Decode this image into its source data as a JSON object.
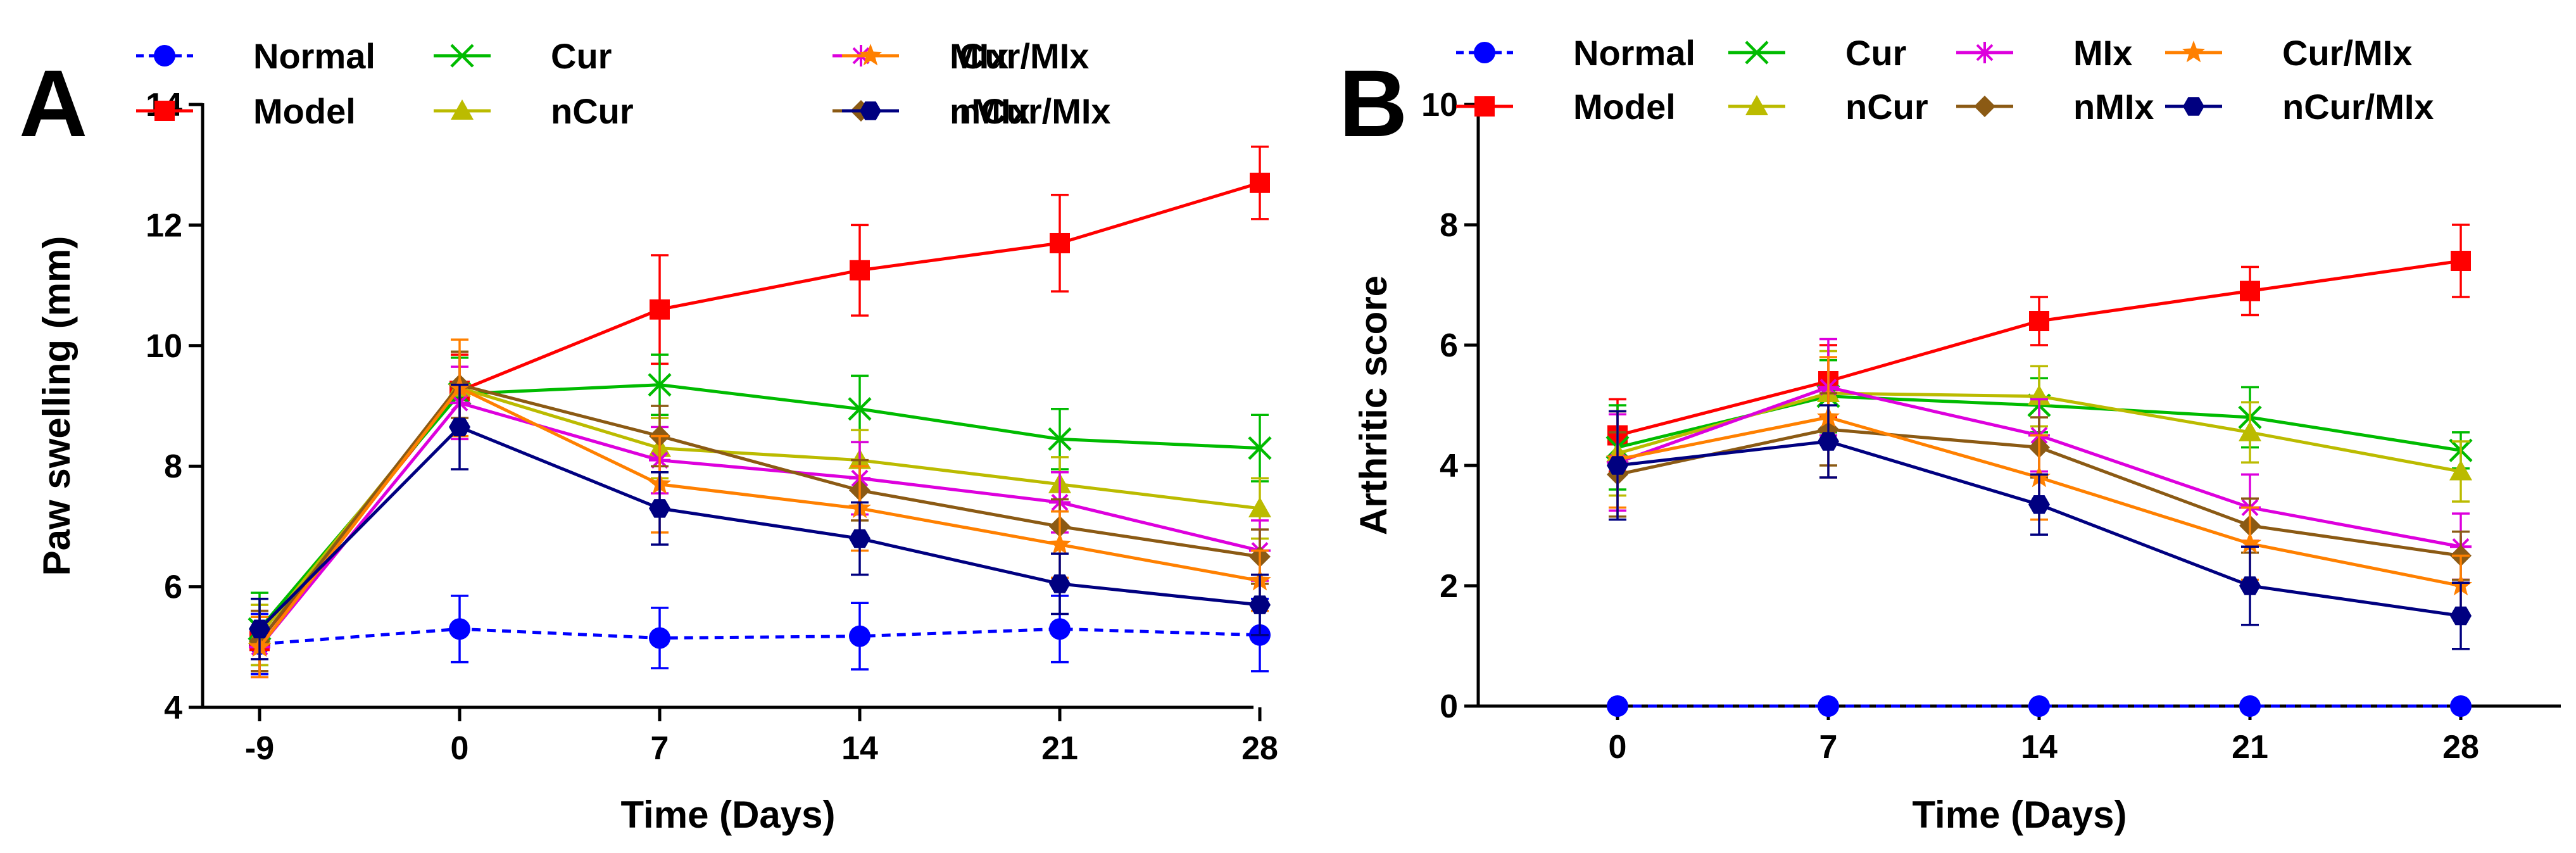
{
  "charts": [
    {
      "panel_label": "A",
      "type": "line",
      "xlabel": "Time (Days)",
      "ylabel": "Paw swelling (mm)",
      "categories": [
        "-9",
        "0",
        "7",
        "14",
        "21",
        "28"
      ],
      "ylim": [
        4,
        14
      ],
      "yticks": [
        "4",
        "6",
        "8",
        "10",
        "12",
        "14"
      ],
      "series": [
        {
          "name": "Normal",
          "color": "#0000ff",
          "marker": "circle",
          "dashed": true,
          "values": [
            5.05,
            5.3,
            5.15,
            5.18,
            5.3,
            5.2
          ],
          "errors": [
            0.5,
            0.55,
            0.5,
            0.55,
            0.55,
            0.6
          ]
        },
        {
          "name": "Model",
          "color": "#ff0000",
          "marker": "square",
          "dashed": false,
          "values": [
            5.1,
            9.25,
            10.6,
            11.25,
            11.7,
            12.7
          ],
          "errors": [
            0.5,
            0.6,
            0.9,
            0.75,
            0.8,
            0.6
          ]
        },
        {
          "name": "Cur",
          "color": "#00bb00",
          "marker": "x",
          "dashed": false,
          "values": [
            5.3,
            9.2,
            9.35,
            8.95,
            8.45,
            8.3
          ],
          "errors": [
            0.6,
            0.6,
            0.5,
            0.55,
            0.5,
            0.55
          ]
        },
        {
          "name": "nCur",
          "color": "#bbbb00",
          "marker": "triangle",
          "dashed": false,
          "values": [
            5.2,
            9.3,
            8.3,
            8.1,
            7.7,
            7.3
          ],
          "errors": [
            0.5,
            0.6,
            0.5,
            0.5,
            0.45,
            0.5
          ]
        },
        {
          "name": "MIx",
          "color": "#dd00dd",
          "marker": "asterisk",
          "dashed": false,
          "values": [
            5.0,
            9.05,
            8.1,
            7.8,
            7.4,
            6.6
          ],
          "errors": [
            0.5,
            0.6,
            0.55,
            0.6,
            0.5,
            0.5
          ]
        },
        {
          "name": "nMIx",
          "color": "#8b5a14",
          "marker": "diamond",
          "dashed": false,
          "values": [
            5.1,
            9.35,
            8.5,
            7.6,
            7.0,
            6.5
          ],
          "errors": [
            0.5,
            0.55,
            0.5,
            0.5,
            0.45,
            0.45
          ]
        },
        {
          "name": "Cur/MIx",
          "color": "#ff8000",
          "marker": "star",
          "dashed": false,
          "values": [
            5.0,
            9.3,
            7.7,
            7.3,
            6.7,
            6.1
          ],
          "errors": [
            0.5,
            0.8,
            0.8,
            0.7,
            0.55,
            0.5
          ]
        },
        {
          "name": "nCur/MIx",
          "color": "#000080",
          "marker": "hexagon",
          "dashed": false,
          "values": [
            5.3,
            8.65,
            7.3,
            6.8,
            6.05,
            5.7
          ],
          "errors": [
            0.5,
            0.7,
            0.6,
            0.6,
            0.5,
            0.5
          ]
        }
      ]
    },
    {
      "panel_label": "B",
      "type": "line",
      "xlabel": "Time (Days)",
      "ylabel": "Arthritic score",
      "categories": [
        "0",
        "7",
        "14",
        "21",
        "28"
      ],
      "ylim": [
        0,
        10
      ],
      "yticks": [
        "0",
        "2",
        "4",
        "6",
        "8",
        "10"
      ],
      "series": [
        {
          "name": "Normal",
          "color": "#0000ff",
          "marker": "circle",
          "dashed": true,
          "values": [
            0,
            0,
            0,
            0,
            0
          ],
          "errors": [
            0,
            0,
            0,
            0,
            0
          ]
        },
        {
          "name": "Model",
          "color": "#ff0000",
          "marker": "square",
          "dashed": false,
          "values": [
            4.5,
            5.4,
            6.4,
            6.9,
            7.4
          ],
          "errors": [
            0.6,
            0.6,
            0.4,
            0.4,
            0.6
          ]
        },
        {
          "name": "Cur",
          "color": "#00bb00",
          "marker": "x",
          "dashed": false,
          "values": [
            4.3,
            5.15,
            5.0,
            4.8,
            4.25
          ],
          "errors": [
            0.7,
            0.6,
            0.45,
            0.5,
            0.3
          ]
        },
        {
          "name": "nCur",
          "color": "#bbbb00",
          "marker": "triangle",
          "dashed": false,
          "values": [
            4.2,
            5.2,
            5.15,
            4.55,
            3.9
          ],
          "errors": [
            0.7,
            0.7,
            0.5,
            0.5,
            0.5
          ]
        },
        {
          "name": "MIx",
          "color": "#dd00dd",
          "marker": "asterisk",
          "dashed": false,
          "values": [
            4.05,
            5.3,
            4.5,
            3.3,
            2.65
          ],
          "errors": [
            0.8,
            0.8,
            0.6,
            0.55,
            0.55
          ]
        },
        {
          "name": "nMIx",
          "color": "#8b5a14",
          "marker": "diamond",
          "dashed": false,
          "values": [
            3.85,
            4.6,
            4.3,
            3.0,
            2.5
          ],
          "errors": [
            0.7,
            0.6,
            0.5,
            0.45,
            0.4
          ]
        },
        {
          "name": "Cur/MIx",
          "color": "#ff8000",
          "marker": "star",
          "dashed": false,
          "values": [
            4.1,
            4.8,
            3.8,
            2.7,
            2.0
          ],
          "errors": [
            0.8,
            1.0,
            0.7,
            0.6,
            0.5
          ]
        },
        {
          "name": "nCur/MIx",
          "color": "#000080",
          "marker": "hexagon",
          "dashed": false,
          "values": [
            4.0,
            4.4,
            3.35,
            2.0,
            1.5
          ],
          "errors": [
            0.9,
            0.6,
            0.5,
            0.65,
            0.55
          ]
        }
      ]
    }
  ]
}
